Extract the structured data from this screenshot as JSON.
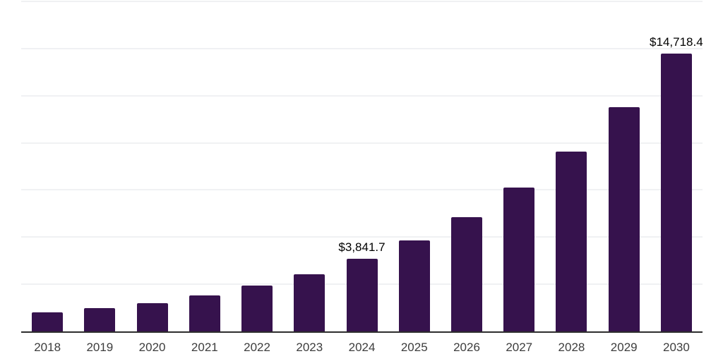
{
  "chart_data": {
    "type": "bar",
    "title": "",
    "xlabel": "",
    "ylabel": "",
    "categories": [
      "2018",
      "2019",
      "2020",
      "2021",
      "2022",
      "2023",
      "2024",
      "2025",
      "2026",
      "2027",
      "2028",
      "2029",
      "2030"
    ],
    "values": [
      1010,
      1235,
      1500,
      1895,
      2420,
      3040,
      3841.7,
      4835,
      6045,
      7625,
      9520,
      11880,
      14718.4
    ],
    "data_labels": {
      "2024": "$3,841.7",
      "2030": "$14,718.4"
    },
    "ylim": [
      0,
      17500
    ],
    "gridline_step": 2500,
    "grid": true,
    "legend": false,
    "colors": {
      "bar": "#36124d",
      "axis_line": "#2d2d2d",
      "gridline": "#f0f1f3",
      "tick_label": "#3d3d3d",
      "value_label": "#000000",
      "background": "#ffffff"
    }
  }
}
